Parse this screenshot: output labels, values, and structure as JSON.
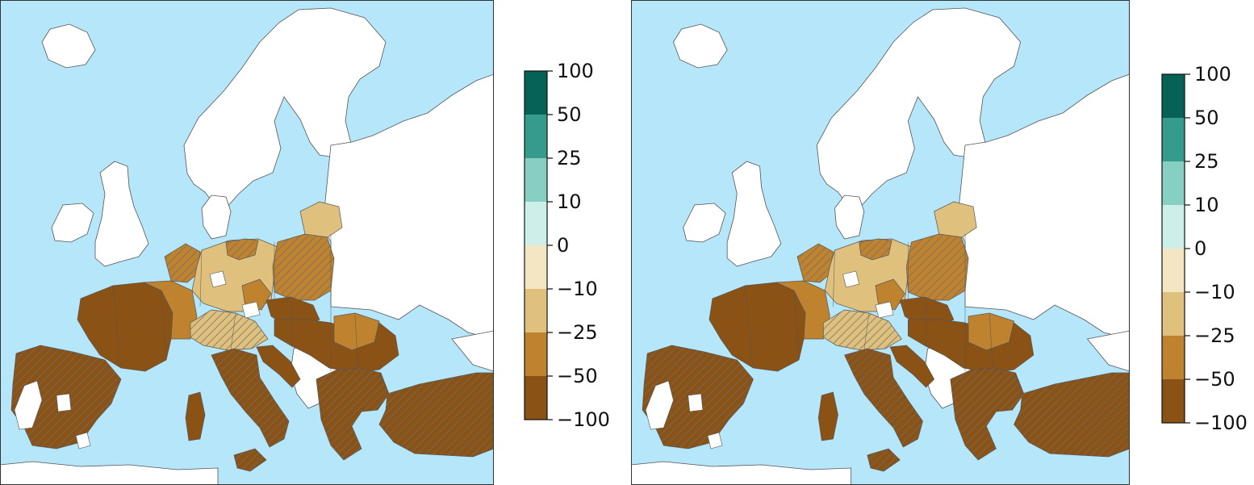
{
  "colors": {
    "sea": "#b5e6fa",
    "land_no_data": "#ffffff",
    "border": "#555555",
    "frame": "#333333",
    "hatch": "#6e6e6e"
  },
  "legend": {
    "bins": [
      {
        "from": -100,
        "to": -50,
        "color": "#8a5215"
      },
      {
        "from": -50,
        "to": -25,
        "color": "#bf822e"
      },
      {
        "from": -25,
        "to": -10,
        "color": "#dfc07d"
      },
      {
        "from": -10,
        "to": 0,
        "color": "#f5e6c3"
      },
      {
        "from": 0,
        "to": 10,
        "color": "#cdeee9"
      },
      {
        "from": 10,
        "to": 25,
        "color": "#86cfc1"
      },
      {
        "from": 25,
        "to": 50,
        "color": "#359b8c"
      },
      {
        "from": 50,
        "to": 100,
        "color": "#066156"
      }
    ],
    "tick_labels": [
      "100",
      "50",
      "25",
      "10",
      "0",
      "−10",
      "−25",
      "−50",
      "−100"
    ]
  },
  "panels": [
    {
      "index": 0
    },
    {
      "index": 1
    }
  ]
}
